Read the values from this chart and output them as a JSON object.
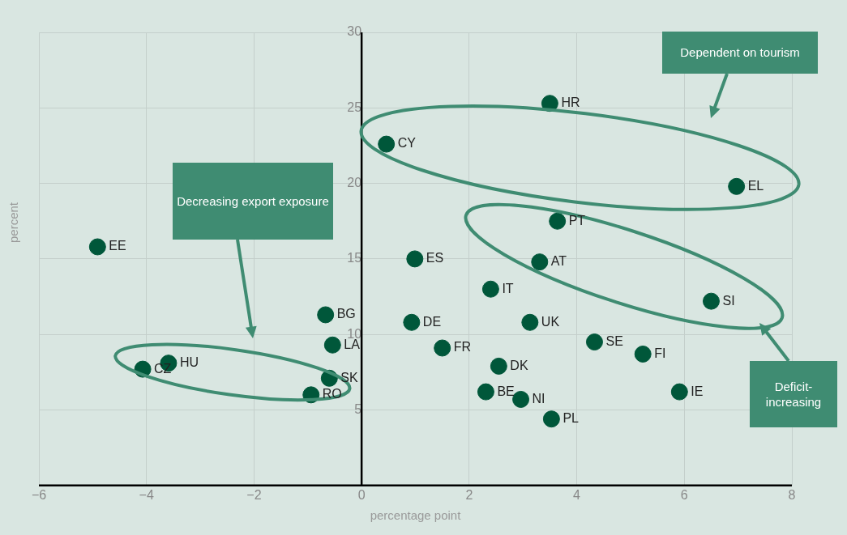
{
  "chart_data": {
    "type": "scatter",
    "xlabel": "percentage point",
    "ylabel": "percent",
    "xlim": [
      -6,
      8
    ],
    "xticks": [
      {
        "value": -6,
        "label": "−6"
      },
      {
        "value": -4,
        "label": "−4"
      },
      {
        "value": -2,
        "label": "−2"
      },
      0,
      2,
      4,
      6,
      8
    ],
    "ylim": [
      0,
      30
    ],
    "yticks": [
      {
        "value": 0,
        "label": null
      },
      5,
      10,
      15,
      20,
      25,
      30
    ],
    "grid": true,
    "legend": false,
    "marker": "circle",
    "series": [
      {
        "color": "#00573a",
        "x": [
          3.53,
          2.96,
          2.31,
          5.91,
          -0.94,
          -0.6,
          -4.07,
          -3.59,
          2.55,
          5.23,
          4.33,
          1.5,
          -0.54,
          3.13,
          0.93,
          -0.67,
          6.5,
          2.4,
          3.31,
          0.99,
          -4.91,
          3.64,
          6.97,
          0.46,
          3.5
        ],
        "values": [
          4.4,
          5.7,
          6.2,
          6.2,
          6.0,
          7.1,
          7.7,
          8.1,
          7.9,
          8.7,
          9.5,
          9.1,
          9.3,
          10.8,
          10.8,
          11.3,
          12.2,
          13.0,
          14.8,
          15.0,
          15.8,
          17.5,
          19.8,
          22.6,
          25.3
        ]
      }
    ],
    "annotations": [
      {
        "text": "PL",
        "x": 3.53,
        "y": 4.4
      },
      {
        "text": "NI",
        "x": 2.96,
        "y": 5.7
      },
      {
        "text": "BE",
        "x": 2.31,
        "y": 6.2
      },
      {
        "text": "IE",
        "x": 5.91,
        "y": 6.2
      },
      {
        "text": "RO",
        "x": -0.94,
        "y": 6.0
      },
      {
        "text": "SK",
        "x": -0.6,
        "y": 7.1
      },
      {
        "text": "CZ",
        "x": -4.07,
        "y": 7.7
      },
      {
        "text": "HU",
        "x": -3.59,
        "y": 8.1
      },
      {
        "text": "DK",
        "x": 2.55,
        "y": 7.9
      },
      {
        "text": "FI",
        "x": 5.23,
        "y": 8.7
      },
      {
        "text": "SE",
        "x": 4.33,
        "y": 9.5
      },
      {
        "text": "FR",
        "x": 1.5,
        "y": 9.1
      },
      {
        "text": "LA",
        "x": -0.54,
        "y": 9.3
      },
      {
        "text": "UK",
        "x": 3.13,
        "y": 10.8
      },
      {
        "text": "DE",
        "x": 0.93,
        "y": 10.8
      },
      {
        "text": "BG",
        "x": -0.67,
        "y": 11.3
      },
      {
        "text": "SI",
        "x": 6.5,
        "y": 12.2
      },
      {
        "text": "IT",
        "x": 2.4,
        "y": 13.0
      },
      {
        "text": "AT",
        "x": 3.31,
        "y": 14.8
      },
      {
        "text": "ES",
        "x": 0.99,
        "y": 15.0
      },
      {
        "text": "EE",
        "x": -4.91,
        "y": 15.8
      },
      {
        "text": "PT",
        "x": 3.64,
        "y": 17.5
      },
      {
        "text": "EL",
        "x": 6.97,
        "y": 19.8
      },
      {
        "text": "CY",
        "x": 0.46,
        "y": 22.6
      },
      {
        "text": "HR",
        "x": 3.5,
        "y": 25.3
      },
      "Deficit-increasing",
      "Decreasing export exposure",
      "Dependent on tourism"
    ]
  }
}
